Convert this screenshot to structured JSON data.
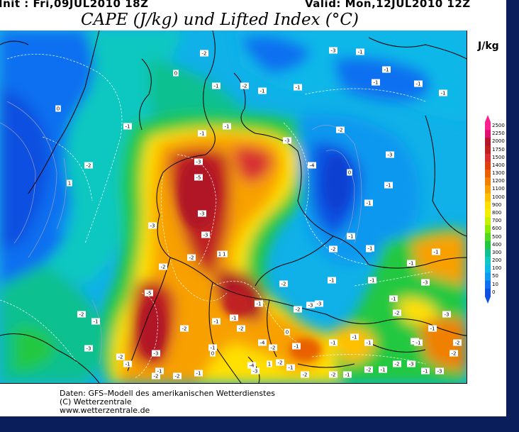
{
  "header": {
    "init": "Init : Fri,09JUL2010 18Z",
    "valid": "Valid: Mon,12JUL2010 12Z",
    "title": "CAPE (J/kg) und Lifted Index (°C)"
  },
  "legend": {
    "unit": "J/kg",
    "levels": [
      "2500",
      "2250",
      "2000",
      "1750",
      "1500",
      "1400",
      "1300",
      "1200",
      "1100",
      "1000",
      "900",
      "800",
      "700",
      "600",
      "500",
      "400",
      "300",
      "200",
      "100",
      "50",
      "10",
      "0"
    ],
    "colors": [
      "#ff2090",
      "#e01070",
      "#b01828",
      "#c02020",
      "#d83030",
      "#e04010",
      "#e86000",
      "#f08000",
      "#f8a000",
      "#ffc000",
      "#ffe000",
      "#f0f000",
      "#c8f000",
      "#90e800",
      "#50d820",
      "#20c840",
      "#10c090",
      "#10c8c0",
      "#10b8e8",
      "#1098f0",
      "#1070f0",
      "#1050e0"
    ]
  },
  "credits": {
    "line1": "Daten: GFS–Modell des amerikanischen Wetterdienstes",
    "line2": "(C) Wetterzentrale",
    "line3": "www.wetterzentrale.de"
  },
  "map_labels": [
    "-1",
    "-1",
    "-1",
    "0",
    "-1",
    "-2",
    "-1",
    "-1",
    "-1",
    "-1",
    "-1",
    "0",
    "-1",
    "-2",
    "-1",
    "-1",
    "0",
    "-2",
    "1",
    "-1",
    "-3",
    "-5",
    "-3",
    "-3",
    "-1",
    "-2",
    "-3",
    "-3",
    "-4",
    "-3",
    "-1",
    "1",
    "-1",
    "-1",
    "0",
    "-2",
    "-2",
    "-1",
    "-1",
    "-1",
    "-2",
    "-4",
    "-2",
    "-1",
    "0",
    "-4",
    "-2",
    "0",
    "-2",
    "-5",
    "-2",
    "-3",
    "-2",
    "-2",
    "-1",
    "-1",
    "-2",
    "-3",
    "-1",
    "-2",
    "-1",
    "1",
    "-3",
    "-2",
    "-1",
    "-2",
    "-2",
    "-1",
    "-2",
    "-1",
    "-2",
    "-3",
    "-1",
    "-3",
    "-2",
    "-2",
    "-1",
    "-1",
    "-1",
    "-1",
    "-1",
    "-3",
    "-3",
    "-1",
    "-3",
    "-1",
    "-1",
    "-1",
    "-1",
    "-1",
    "-3",
    "-1",
    "-1",
    "-2",
    "-2",
    "-3"
  ]
}
